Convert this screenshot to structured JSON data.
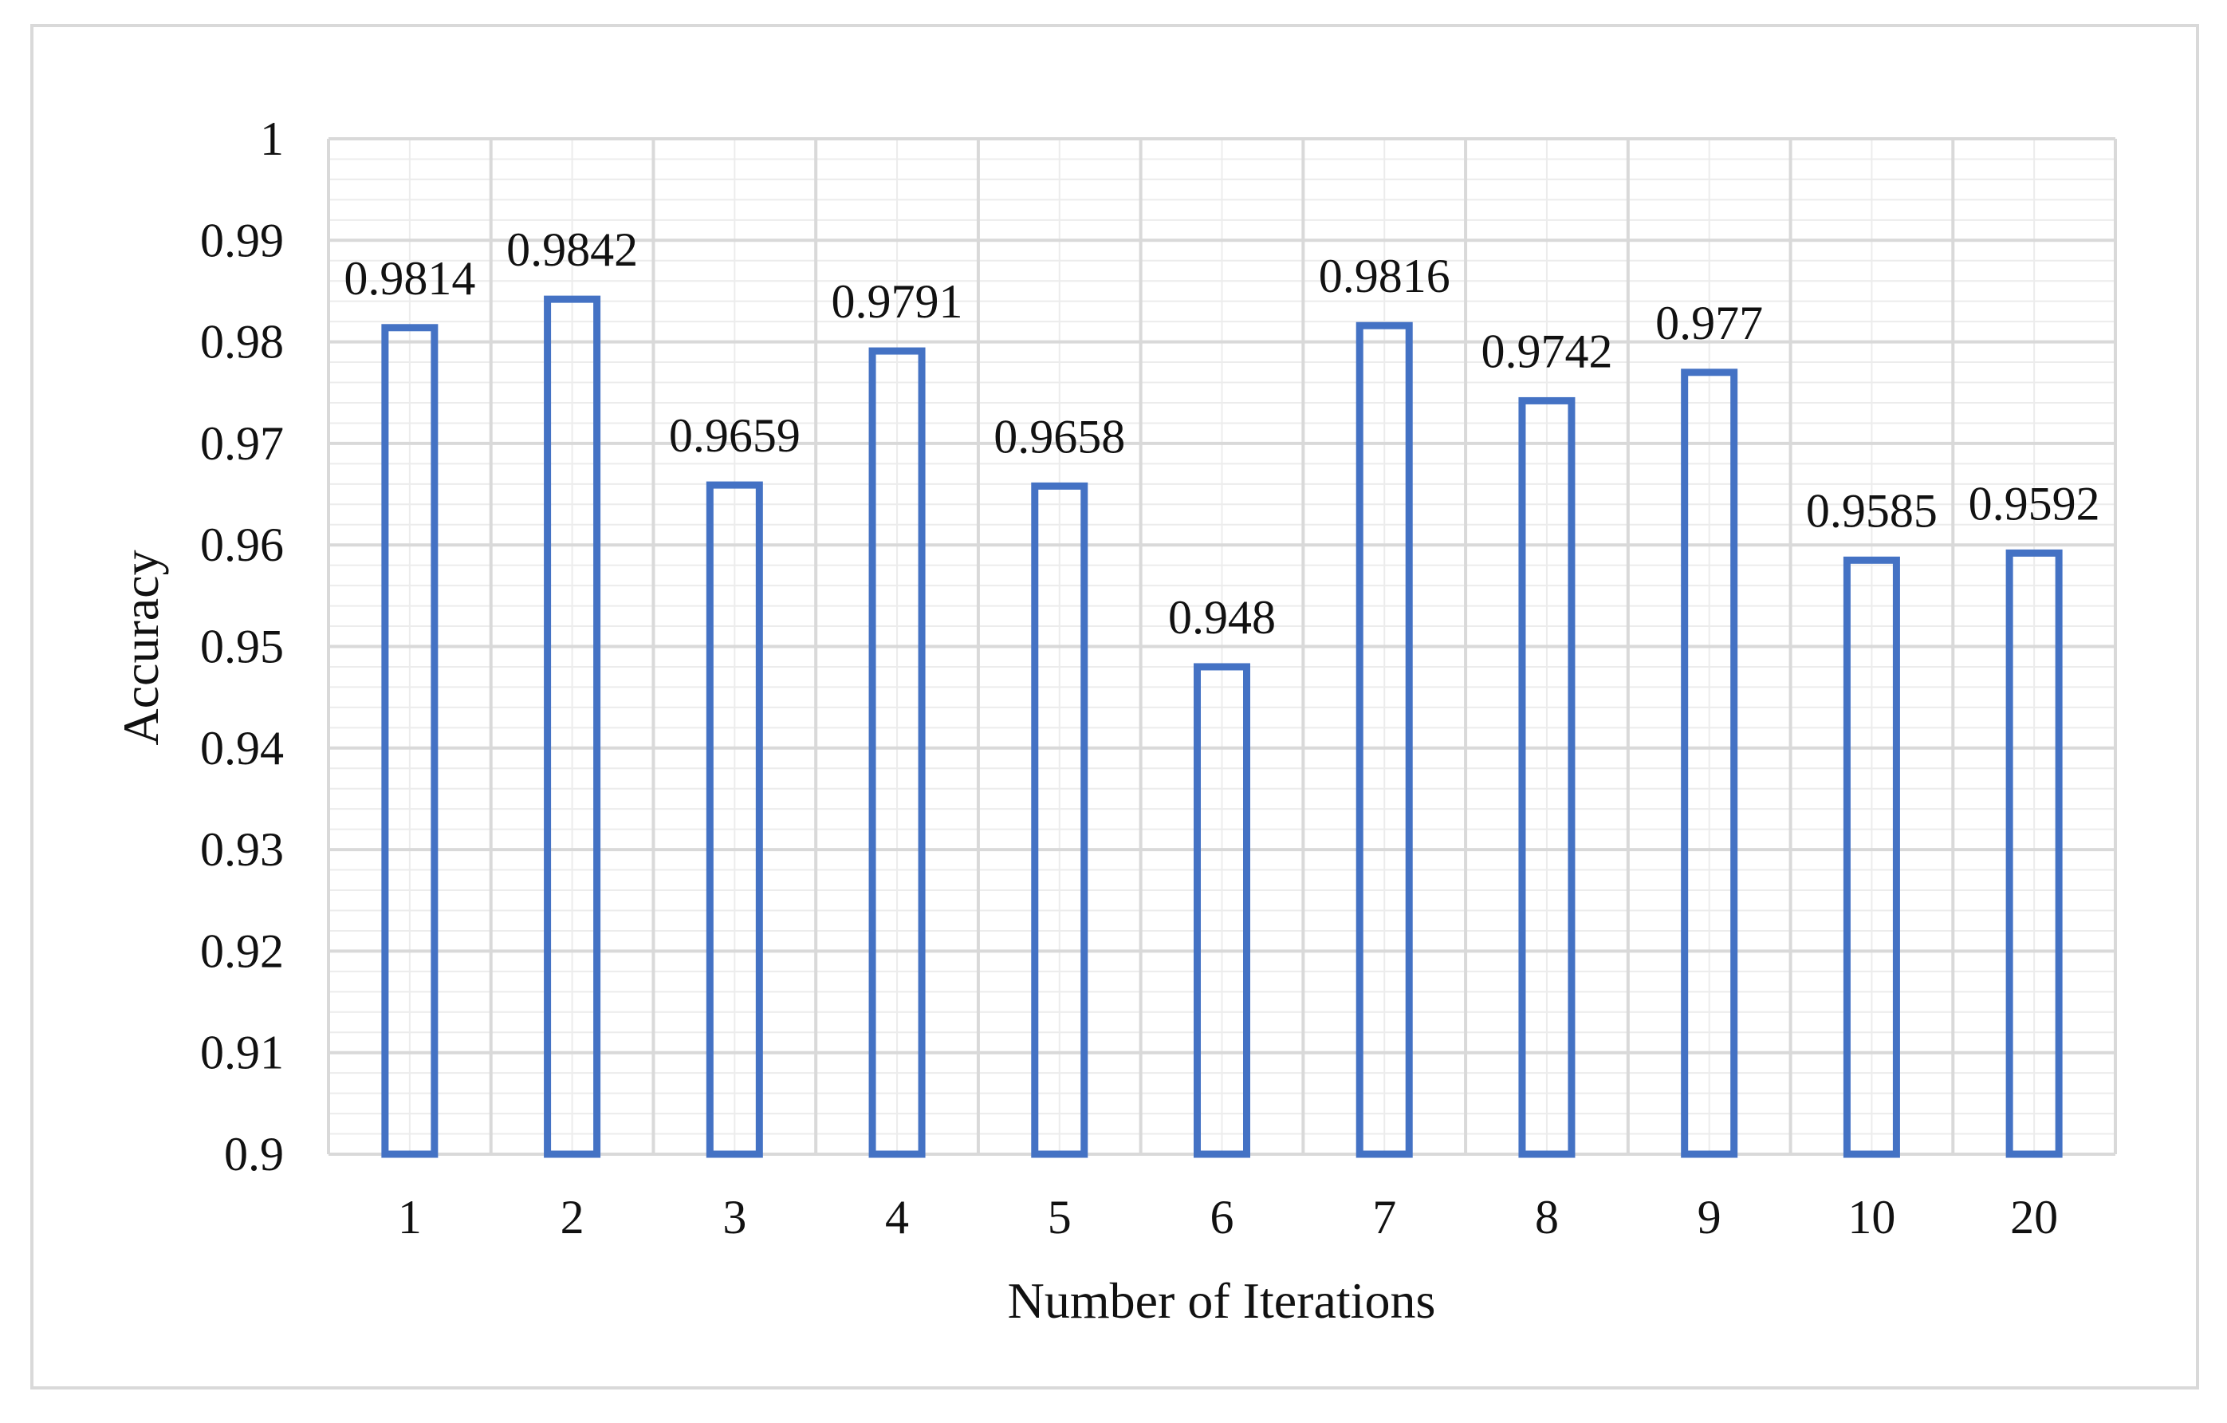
{
  "chart_data": {
    "type": "bar",
    "title": "",
    "xlabel": "Number of Iterations",
    "ylabel": "Accuracy",
    "categories": [
      "1",
      "2",
      "3",
      "4",
      "5",
      "6",
      "7",
      "8",
      "9",
      "10",
      "20"
    ],
    "values": [
      0.9814,
      0.9842,
      0.9659,
      0.9791,
      0.9658,
      0.948,
      0.9816,
      0.9742,
      0.977,
      0.9585,
      0.9592
    ],
    "value_labels": [
      "0.9814",
      "0.9842",
      "0.9659",
      "0.9791",
      "0.9658",
      "0.948",
      "0.9816",
      "0.9742",
      "0.977",
      "0.9585",
      "0.9592"
    ],
    "ylim": [
      0.9,
      1
    ],
    "yticks": [
      "0.9",
      "0.91",
      "0.92",
      "0.93",
      "0.94",
      "0.95",
      "0.96",
      "0.97",
      "0.98",
      "0.99",
      "1"
    ],
    "grid": true,
    "legend": "none",
    "bar_style": "outline",
    "colors": {
      "bar_stroke": "#4472c4",
      "grid_major": "#d9d9d9",
      "grid_minor": "#ececec"
    }
  }
}
